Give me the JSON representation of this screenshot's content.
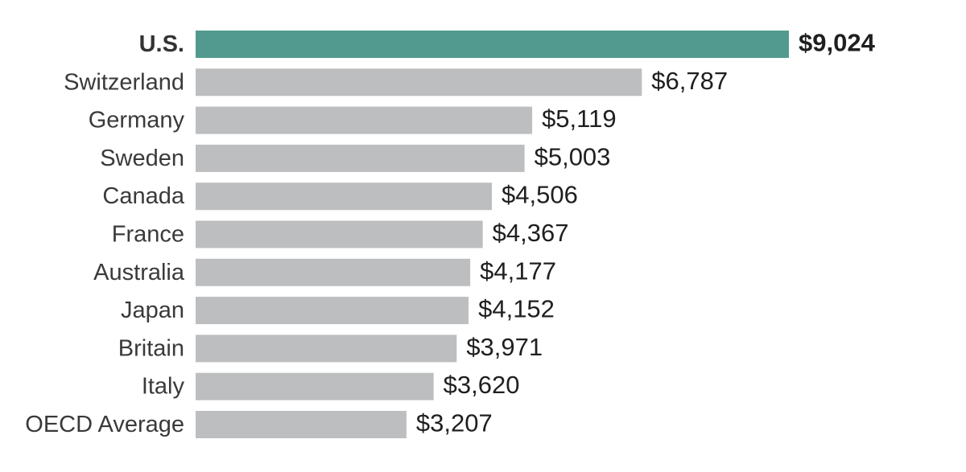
{
  "chart_data": {
    "type": "bar",
    "orientation": "horizontal",
    "categories": [
      "U.S.",
      "Switzerland",
      "Germany",
      "Sweden",
      "Canada",
      "France",
      "Australia",
      "Japan",
      "Britain",
      "Italy",
      "OECD Average"
    ],
    "values": [
      9024,
      6787,
      5119,
      5003,
      4506,
      4367,
      4177,
      4152,
      3971,
      3620,
      3207
    ],
    "value_labels": [
      "$9,024",
      "$6,787",
      "$5,119",
      "$5,003",
      "$4,506",
      "$4,367",
      "$4,177",
      "$4,152",
      "$3,971",
      "$3,620",
      "$3,207"
    ],
    "highlight": "U.S.",
    "xlim": [
      0,
      9024
    ],
    "grid": false,
    "legend": "none"
  },
  "colors": {
    "highlight": "#529a8f",
    "bar": "#bdbec0",
    "label": "#3a3a3a"
  }
}
